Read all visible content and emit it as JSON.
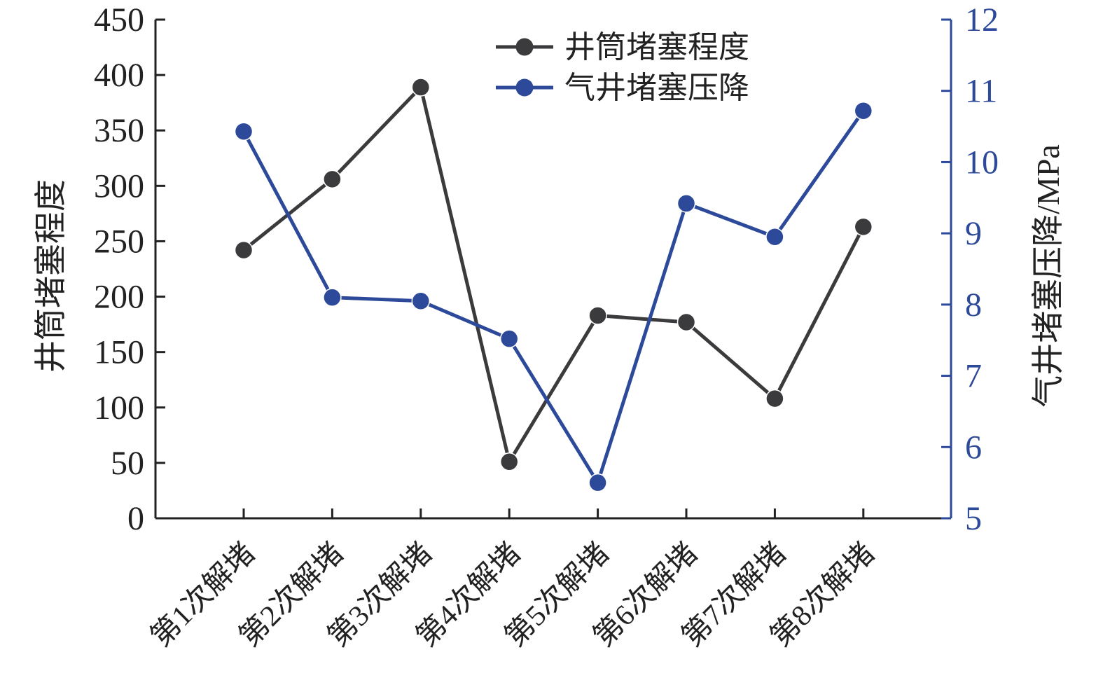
{
  "chart_data": {
    "type": "line",
    "categories": [
      "第1次解堵",
      "第2次解堵",
      "第3次解堵",
      "第4次解堵",
      "第5次解堵",
      "第6次解堵",
      "第7次解堵",
      "第8次解堵"
    ],
    "series": [
      {
        "name": "井筒堵塞程度",
        "axis": "left",
        "color": "#3b3b3d",
        "values": [
          242,
          306,
          389,
          51,
          183,
          177,
          108,
          263
        ]
      },
      {
        "name": "气井堵塞压降",
        "axis": "right",
        "color": "#2d4a9a",
        "values": [
          10.43,
          8.1,
          8.05,
          7.52,
          5.5,
          9.42,
          8.95,
          10.72
        ]
      }
    ],
    "ylabel_left": "井筒堵塞程度",
    "ylabel_right": "气井堵塞压降/MPa",
    "ylim_left": [
      0,
      450
    ],
    "yticks_left": [
      "0",
      "50",
      "100",
      "150",
      "200",
      "250",
      "300",
      "350",
      "400",
      "450"
    ],
    "ylim_right": [
      5,
      12
    ],
    "yticks_right": [
      "5",
      "6",
      "7",
      "8",
      "9",
      "10",
      "11",
      "12"
    ],
    "legend_position": "top-center",
    "grid": false,
    "colors": {
      "left_axis": "#222222",
      "right_axis": "#2d4a9a"
    }
  }
}
